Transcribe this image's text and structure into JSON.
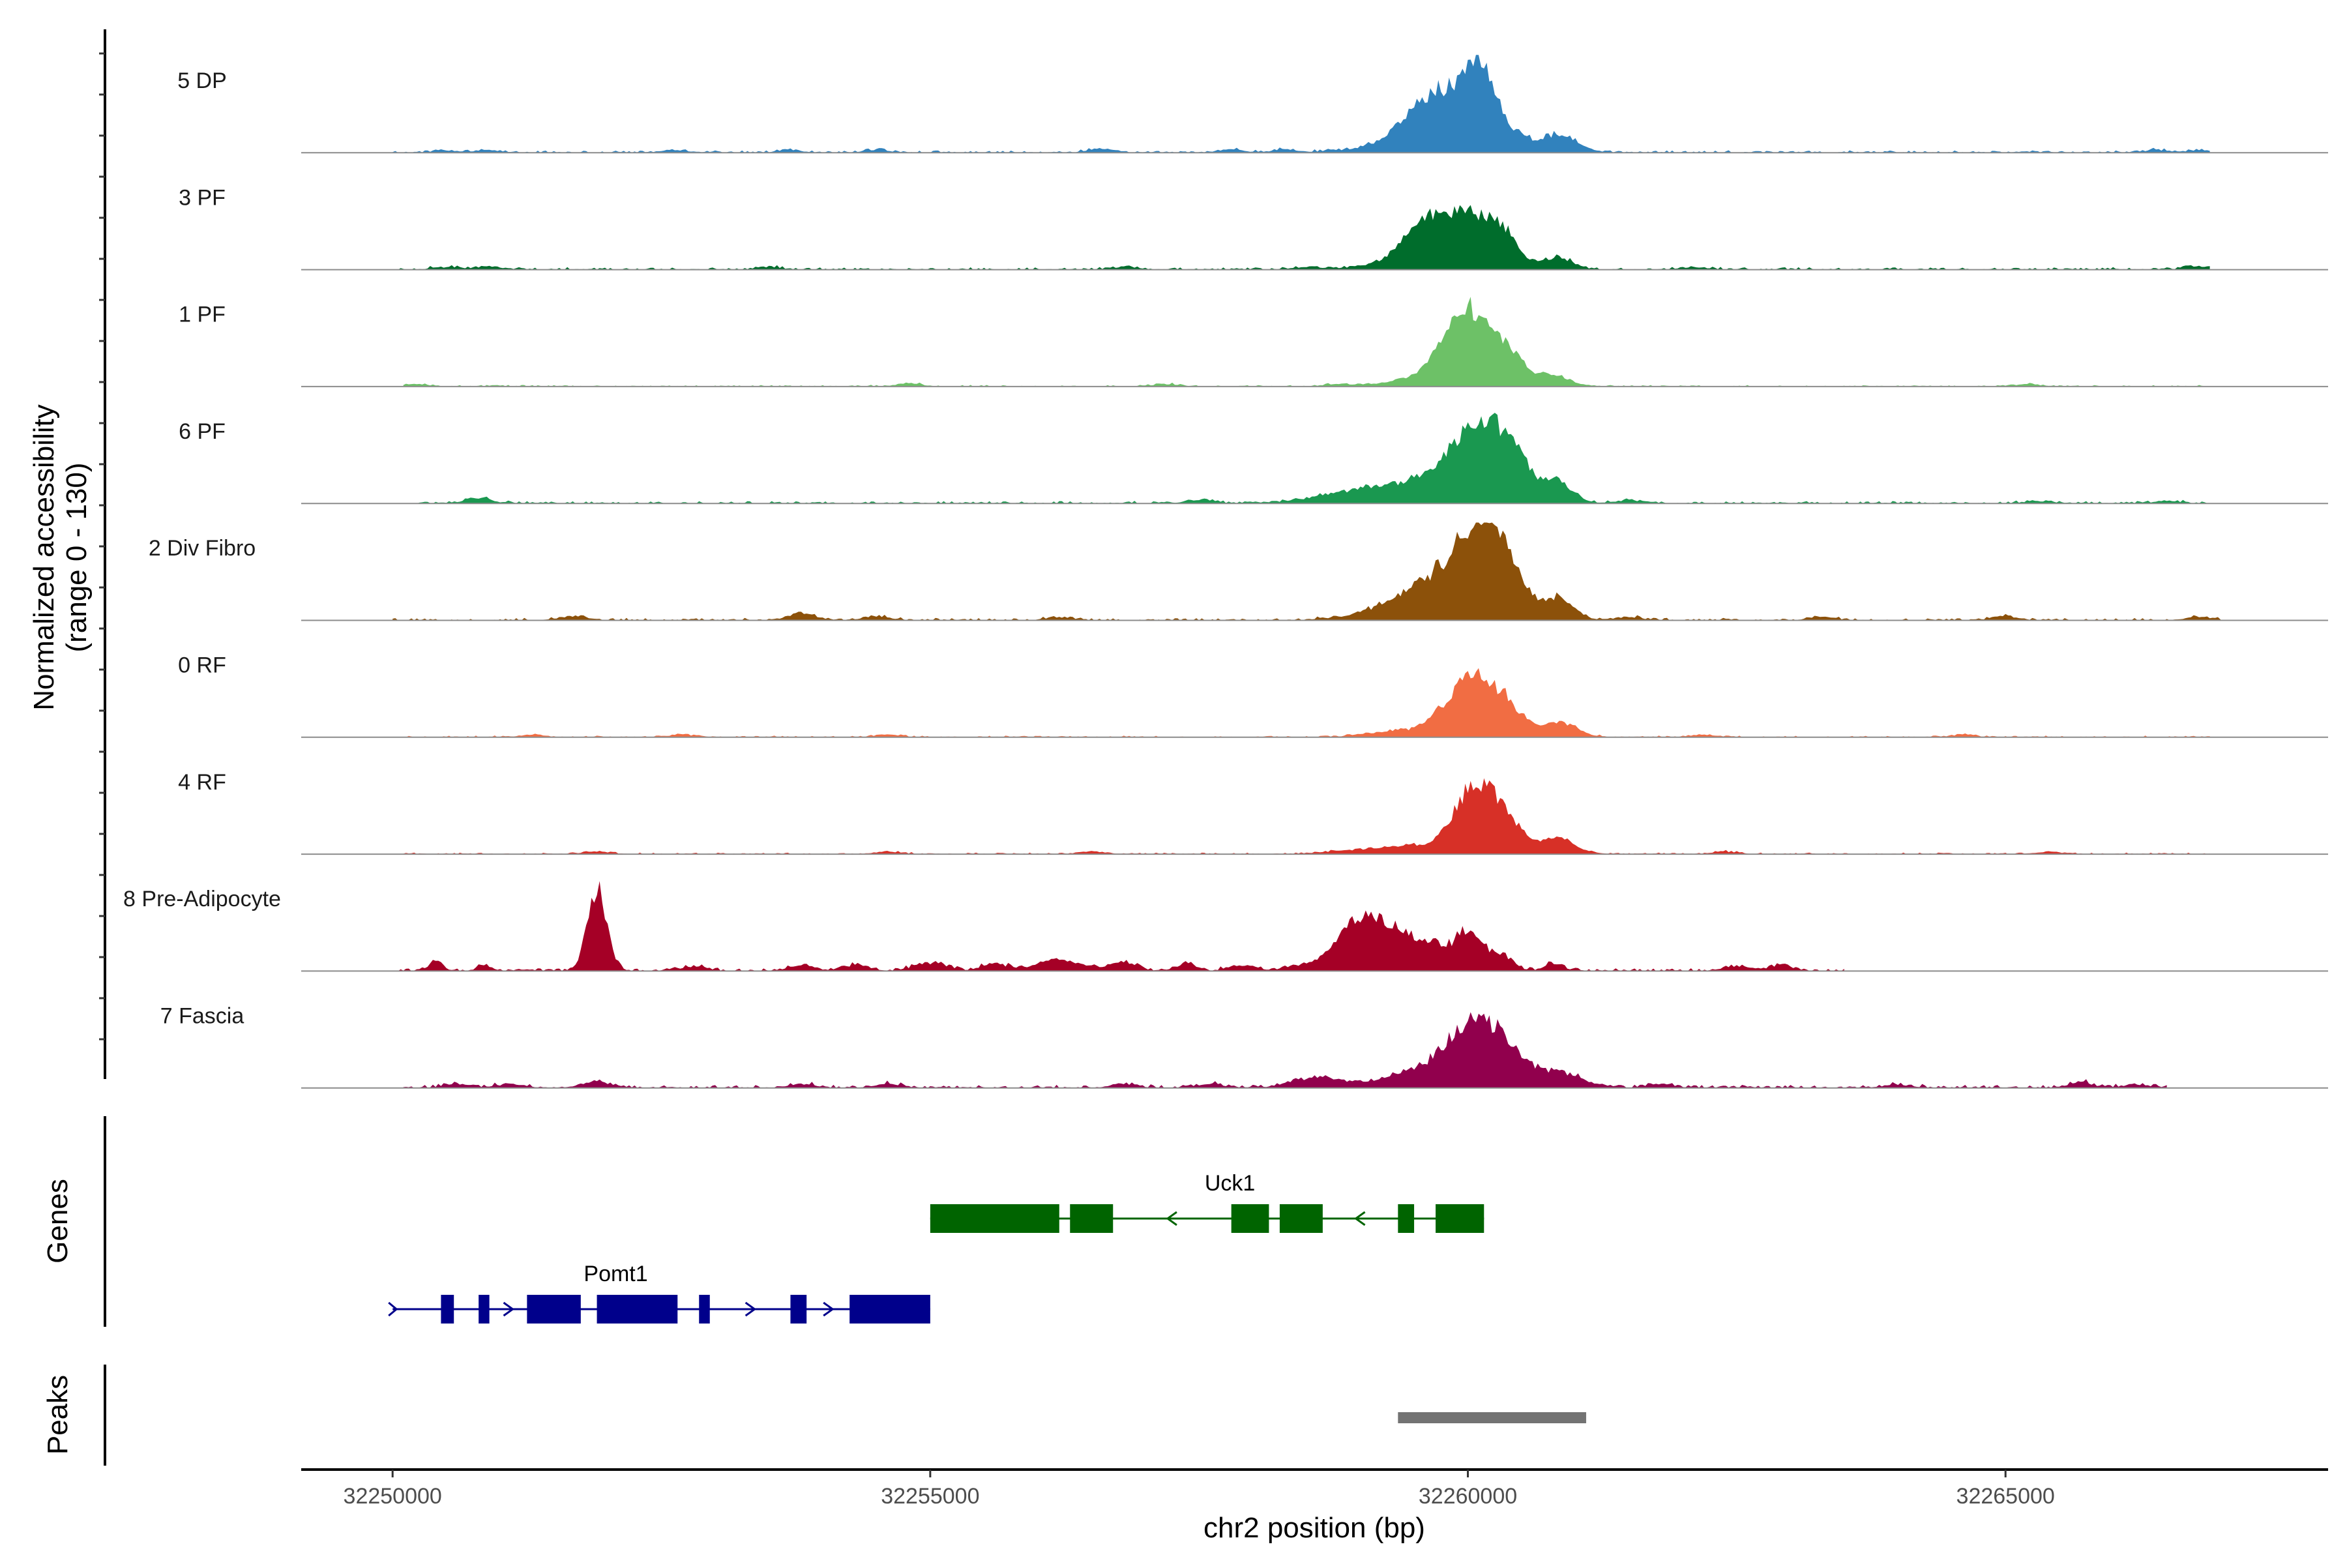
{
  "chart_data": {
    "type": "area",
    "title": "",
    "ylabel": [
      "Normalized accessibility",
      "(range 0 - 130)"
    ],
    "xlabel": "chr2 position (bp)",
    "ylim": [
      0,
      130
    ],
    "xlim": [
      32249150,
      32268000
    ],
    "x_ticks": [
      32250000,
      32255000,
      32260000,
      32265000
    ],
    "x_tick_labels": [
      "32250000",
      "32255000",
      "32260000",
      "32265000"
    ],
    "grid": false,
    "legend": "none",
    "tracks": [
      {
        "name": "5 DP",
        "color": "#3182bd",
        "start": 32250000,
        "end": 32266900,
        "noise": 3,
        "peaks": [
          [
            32259550,
            40,
            230
          ],
          [
            32260000,
            80,
            300
          ],
          [
            32260120,
            55,
            120
          ],
          [
            32260850,
            22,
            170
          ],
          [
            32259100,
            5,
            300
          ]
        ],
        "bumps": [
          [
            32250500,
            3
          ],
          [
            32250900,
            3
          ],
          [
            32252600,
            3
          ],
          [
            32253700,
            3
          ],
          [
            32254500,
            3
          ],
          [
            32256600,
            5
          ],
          [
            32257800,
            4
          ],
          [
            32258300,
            4
          ],
          [
            32266400,
            3
          ],
          [
            32266800,
            3
          ]
        ]
      },
      {
        "name": "3 PF",
        "color": "#006d2c",
        "start": 32250000,
        "end": 32266900,
        "noise": 3,
        "peaks": [
          [
            32259600,
            45,
            220
          ],
          [
            32260000,
            65,
            280
          ],
          [
            32260300,
            25,
            150
          ],
          [
            32260850,
            15,
            130
          ],
          [
            32259200,
            5,
            250
          ]
        ],
        "bumps": [
          [
            32250500,
            3
          ],
          [
            32250900,
            4
          ],
          [
            32253500,
            3
          ],
          [
            32256800,
            3
          ],
          [
            32258500,
            3
          ],
          [
            32262100,
            3
          ],
          [
            32266800,
            4
          ]
        ]
      },
      {
        "name": "1 PF",
        "color": "#6dc167",
        "start": 32250100,
        "end": 32266900,
        "noise": 2,
        "peaks": [
          [
            32259950,
            80,
            200
          ],
          [
            32260200,
            35,
            250
          ],
          [
            32260400,
            18,
            130
          ],
          [
            32260800,
            14,
            150
          ],
          [
            32259500,
            10,
            250
          ]
        ],
        "bumps": [
          [
            32250200,
            3
          ],
          [
            32254800,
            4
          ],
          [
            32257200,
            3
          ],
          [
            32258800,
            3
          ],
          [
            32265200,
            3
          ]
        ]
      },
      {
        "name": "6 PF",
        "color": "#1a9850",
        "start": 32250100,
        "end": 32266900,
        "noise": 3,
        "peaks": [
          [
            32259500,
            20,
            500
          ],
          [
            32260100,
            85,
            280
          ],
          [
            32260400,
            35,
            180
          ],
          [
            32260850,
            24,
            140
          ],
          [
            32259000,
            8,
            400
          ]
        ],
        "bumps": [
          [
            32250800,
            7
          ],
          [
            32257500,
            4
          ],
          [
            32261500,
            4
          ],
          [
            32265300,
            3
          ],
          [
            32266500,
            3
          ]
        ]
      },
      {
        "name": "2 Div Fibro",
        "color": "#8c510a",
        "start": 32250000,
        "end": 32267000,
        "noise": 3,
        "peaks": [
          [
            32259600,
            40,
            300
          ],
          [
            32260100,
            100,
            250
          ],
          [
            32260300,
            45,
            200
          ],
          [
            32260850,
            28,
            140
          ],
          [
            32259100,
            6,
            300
          ]
        ],
        "bumps": [
          [
            32251700,
            5
          ],
          [
            32253800,
            9
          ],
          [
            32254500,
            5
          ],
          [
            32256200,
            4
          ],
          [
            32261500,
            4
          ],
          [
            32263300,
            4
          ],
          [
            32265000,
            5
          ],
          [
            32266800,
            4
          ]
        ]
      },
      {
        "name": "0 RF",
        "color": "#f16d43",
        "start": 32250100,
        "end": 32266900,
        "noise": 2,
        "peaks": [
          [
            32260100,
            70,
            200
          ],
          [
            32259800,
            25,
            180
          ],
          [
            32260400,
            25,
            150
          ],
          [
            32260850,
            20,
            160
          ],
          [
            32259300,
            8,
            250
          ]
        ],
        "bumps": [
          [
            32251300,
            3
          ],
          [
            32252700,
            3
          ],
          [
            32254600,
            3
          ],
          [
            32262200,
            3
          ],
          [
            32264600,
            3
          ]
        ]
      },
      {
        "name": "4 RF",
        "color": "#d73027",
        "start": 32250100,
        "end": 32266900,
        "noise": 2,
        "peaks": [
          [
            32260050,
            85,
            180
          ],
          [
            32260350,
            40,
            180
          ],
          [
            32259500,
            10,
            250
          ],
          [
            32260850,
            20,
            150
          ],
          [
            32259000,
            5,
            300
          ]
        ],
        "bumps": [
          [
            32251900,
            3
          ],
          [
            32254600,
            3
          ],
          [
            32256500,
            3
          ],
          [
            32262400,
            3
          ],
          [
            32265400,
            3
          ]
        ]
      },
      {
        "name": "8 Pre-Adipocyte",
        "color": "#a50026",
        "start": 32250000,
        "end": 32263500,
        "noise": 4,
        "peaks": [
          [
            32251900,
            110,
            90
          ],
          [
            32259000,
            70,
            220
          ],
          [
            32259400,
            40,
            160
          ],
          [
            32259700,
            28,
            110
          ],
          [
            32260000,
            55,
            120
          ],
          [
            32260300,
            22,
            110
          ],
          [
            32260800,
            10,
            80
          ],
          [
            32250400,
            14,
            60
          ],
          [
            32250850,
            8,
            60
          ],
          [
            32255000,
            10,
            150
          ],
          [
            32255600,
            9,
            120
          ],
          [
            32256200,
            14,
            200
          ],
          [
            32256800,
            12,
            120
          ],
          [
            32257400,
            9,
            80
          ]
        ],
        "bumps": [
          [
            32252800,
            6
          ],
          [
            32253800,
            7
          ],
          [
            32254300,
            7
          ],
          [
            32257900,
            7
          ],
          [
            32258400,
            6
          ],
          [
            32262500,
            6
          ],
          [
            32262900,
            6
          ]
        ]
      },
      {
        "name": "7 Fascia",
        "color": "#91004d",
        "start": 32250100,
        "end": 32266500,
        "noise": 4,
        "peaks": [
          [
            32260050,
            75,
            250
          ],
          [
            32259500,
            20,
            300
          ],
          [
            32260350,
            30,
            200
          ],
          [
            32260850,
            20,
            200
          ],
          [
            32258600,
            14,
            220
          ],
          [
            32251900,
            7,
            150
          ],
          [
            32265700,
            8,
            100
          ]
        ],
        "bumps": [
          [
            32250600,
            5
          ],
          [
            32251100,
            5
          ],
          [
            32253800,
            5
          ],
          [
            32254600,
            5
          ],
          [
            32256800,
            5
          ],
          [
            32257600,
            5
          ],
          [
            32261800,
            5
          ],
          [
            32264000,
            4
          ],
          [
            32266200,
            4
          ]
        ]
      }
    ],
    "genes": [
      {
        "name": "Uck1",
        "strand": "-",
        "color": "#006400",
        "start": 32255000,
        "end": 32260150,
        "exons": [
          [
            32255000,
            32256200
          ],
          [
            32256300,
            32256700
          ],
          [
            32257800,
            32258150
          ],
          [
            32258250,
            32258650
          ],
          [
            32259350,
            32259500
          ],
          [
            32259700,
            32260150
          ]
        ]
      },
      {
        "name": "Pomt1",
        "strand": "+",
        "color": "#00008b",
        "start": 32250000,
        "end": 32255000,
        "exons": [
          [
            32250450,
            32250570
          ],
          [
            32250800,
            32250900
          ],
          [
            32251250,
            32251750
          ],
          [
            32251900,
            32252650
          ],
          [
            32252850,
            32252950
          ],
          [
            32253700,
            32253850
          ],
          [
            32254250,
            32255000
          ]
        ]
      }
    ],
    "peaks": [
      {
        "start": 32259350,
        "end": 32261100,
        "color": "#737373"
      }
    ],
    "panel_labels": {
      "genes": "Genes",
      "peaks": "Peaks"
    }
  }
}
